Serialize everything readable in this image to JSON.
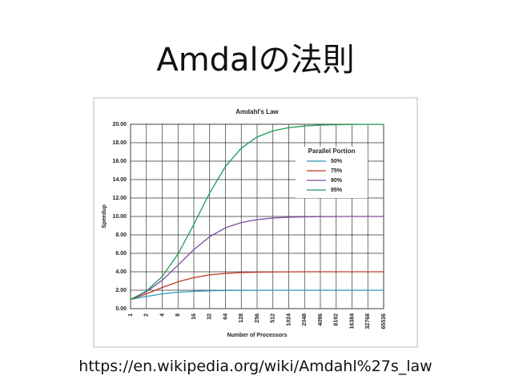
{
  "slide": {
    "title": "Amdalの法則",
    "url": "https://en.wikipedia.org/wiki/Amdahl%27s_law"
  },
  "chart_data": {
    "type": "line",
    "title": "Amdahl's Law",
    "x_label": "Number of Processors",
    "y_label": "Speedup",
    "x": [
      1,
      2,
      4,
      8,
      16,
      32,
      64,
      128,
      256,
      512,
      1024,
      2048,
      4096,
      8192,
      16384,
      32768,
      65536
    ],
    "xlog": true,
    "xlim": [
      1,
      65536
    ],
    "xticks": [
      1,
      2,
      4,
      8,
      16,
      32,
      64,
      128,
      256,
      512,
      1024,
      2048,
      4096,
      8192,
      16384,
      32768,
      65536
    ],
    "ylim": [
      0,
      20
    ],
    "yticks": [
      {
        "value": 0,
        "label": "0.00"
      },
      {
        "value": 2,
        "label": "2.00"
      },
      {
        "value": 4,
        "label": "4.00"
      },
      {
        "value": 6,
        "label": "6.00"
      },
      {
        "value": 8,
        "label": "8.00"
      },
      {
        "value": 10,
        "label": "10.00"
      },
      {
        "value": 12,
        "label": "12.00"
      },
      {
        "value": 14,
        "label": "14.00"
      },
      {
        "value": 16,
        "label": "16.00"
      },
      {
        "value": 18,
        "label": "18.00"
      },
      {
        "value": 20,
        "label": "20.00"
      }
    ],
    "grid": true,
    "legend_title": "Parallel Portion",
    "legend": "upper right",
    "series": [
      {
        "name": "50%",
        "color": "#2a9bb7",
        "values": [
          1,
          1.33,
          1.6,
          1.78,
          1.88,
          1.94,
          1.97,
          1.98,
          1.99,
          2,
          2,
          2,
          2,
          2,
          2,
          2,
          2
        ]
      },
      {
        "name": "75%",
        "color": "#c0392b",
        "values": [
          1,
          1.6,
          2.29,
          2.91,
          3.37,
          3.66,
          3.82,
          3.91,
          3.95,
          3.98,
          3.99,
          4,
          4,
          4,
          4,
          4,
          4
        ]
      },
      {
        "name": "90%",
        "color": "#7d4e9e",
        "values": [
          1,
          1.82,
          3.08,
          4.71,
          6.4,
          7.8,
          8.77,
          9.34,
          9.66,
          9.83,
          9.91,
          9.96,
          9.98,
          9.99,
          10,
          10,
          10
        ]
      },
      {
        "name": "95%",
        "color": "#1e9b5a",
        "values": [
          1,
          1.9,
          3.48,
          5.93,
          9.14,
          12.55,
          15.42,
          17.41,
          18.62,
          19.28,
          19.63,
          19.81,
          19.91,
          19.95,
          19.98,
          19.99,
          19.99
        ]
      }
    ]
  }
}
